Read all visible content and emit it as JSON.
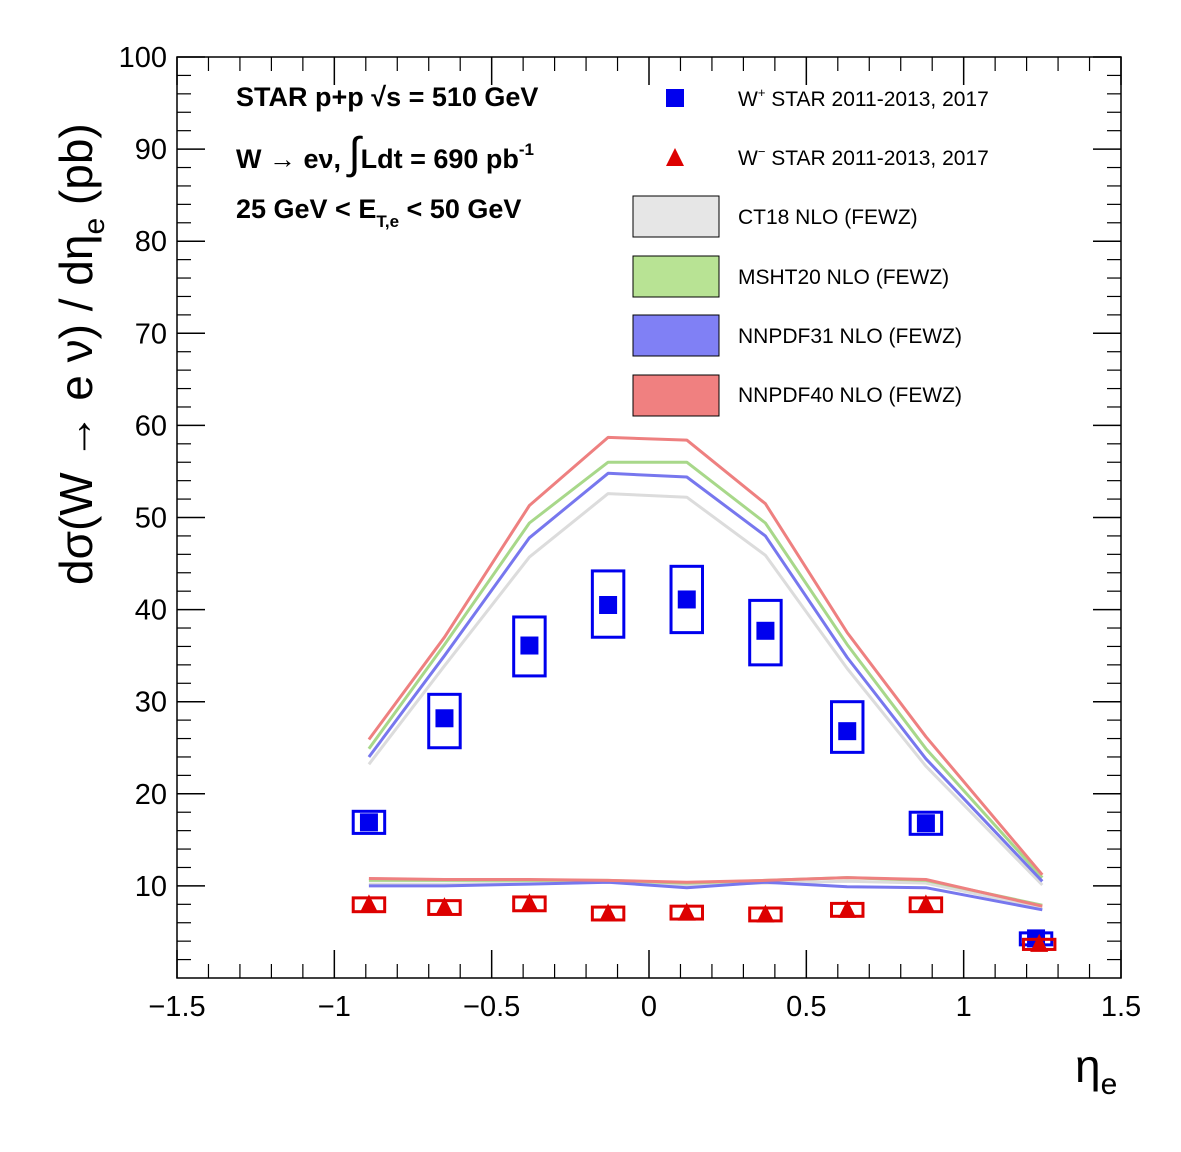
{
  "chart_data": {
    "type": "scatter",
    "xlabel": "η",
    "xlabel_sub": "e",
    "ylabel": "dσ(W → e ν) / dη",
    "ylabel_sub": "e",
    "ylabel_unit": " (pb)",
    "xlim": [
      -1.5,
      1.5
    ],
    "ylim": [
      0,
      100
    ],
    "x_ticks": [
      -1.5,
      -1,
      -0.5,
      0,
      0.5,
      1,
      1.5
    ],
    "x_tick_labels": [
      "−1.5",
      "−1",
      "−0.5",
      "0",
      "0.5",
      "1",
      "1.5"
    ],
    "y_ticks": [
      10,
      20,
      30,
      40,
      50,
      60,
      70,
      80,
      90,
      100
    ],
    "y_tick_labels": [
      "10",
      "20",
      "30",
      "40",
      "50",
      "60",
      "70",
      "80",
      "90",
      "100"
    ],
    "annotations": {
      "line1": "STAR p+p  √s = 510 GeV",
      "line2_a": "W  → eν, ",
      "line2_int": "∫",
      "line2_b": "Ldt = 690 pb",
      "line2_sup": "-1",
      "line3_a": "25 GeV < E",
      "line3_sub": "T,e",
      "line3_b": " < 50 GeV"
    },
    "legend_placement": "top-right",
    "series": [
      {
        "name": "W⁺ STAR 2011-2013, 2017",
        "legend_main": "W",
        "legend_sup": "+",
        "legend_rest": " STAR 2011-2013, 2017",
        "marker": "square",
        "color": "#0000ee",
        "x": [
          -0.89,
          -0.65,
          -0.38,
          -0.13,
          0.12,
          0.37,
          0.63,
          0.88,
          1.23
        ],
        "y": [
          16.9,
          28.2,
          36.1,
          40.5,
          41.1,
          37.7,
          26.8,
          16.8,
          4.3
        ],
        "sys_halfwidth": [
          0.05,
          0.05,
          0.05,
          0.05,
          0.05,
          0.05,
          0.05,
          0.05,
          0.05
        ],
        "sys_low": [
          15.7,
          25.0,
          32.8,
          37.0,
          37.5,
          34.0,
          24.5,
          15.6,
          3.6
        ],
        "sys_high": [
          18.1,
          30.8,
          39.2,
          44.2,
          44.7,
          41.0,
          30.0,
          18.0,
          4.9
        ]
      },
      {
        "name": "W⁻ STAR 2011-2013, 2017",
        "legend_main": "W",
        "legend_sup": "−",
        "legend_rest": " STAR 2011-2013, 2017",
        "marker": "triangle",
        "color": "#dd0000",
        "x": [
          -0.89,
          -0.65,
          -0.38,
          -0.13,
          0.12,
          0.37,
          0.63,
          0.88,
          1.24
        ],
        "y": [
          8.0,
          7.7,
          8.1,
          7.0,
          7.1,
          6.9,
          7.4,
          8.0,
          3.7
        ],
        "sys_halfwidth": [
          0.05,
          0.05,
          0.05,
          0.05,
          0.05,
          0.05,
          0.05,
          0.05,
          0.05
        ],
        "sys_low": [
          7.2,
          6.9,
          7.3,
          6.3,
          6.4,
          6.2,
          6.7,
          7.2,
          3.1
        ],
        "sys_high": [
          8.7,
          8.4,
          8.8,
          7.7,
          7.8,
          7.6,
          8.1,
          8.7,
          4.2
        ]
      }
    ],
    "theory_curves": [
      {
        "name": "CT18 NLO (FEWZ)",
        "color": "#dcdcdc",
        "legend_fill": "#e6e6e6",
        "x_plus": [
          -0.89,
          -0.65,
          -0.38,
          -0.13,
          0.12,
          0.37,
          0.63,
          0.88,
          1.25
        ],
        "y_plus": [
          23.2,
          33.9,
          45.7,
          52.6,
          52.2,
          45.9,
          33.6,
          23.0,
          10.1
        ],
        "x_minus": [
          -0.89,
          -0.65,
          -0.38,
          -0.13,
          0.12,
          0.37,
          0.63,
          0.88,
          1.25
        ],
        "y_minus": [
          10.2,
          10.2,
          10.3,
          10.4,
          10.1,
          10.3,
          10.5,
          10.3,
          7.6
        ]
      },
      {
        "name": "MSHT20 NLO (FEWZ)",
        "color": "#a8d88a",
        "legend_fill": "#b8e394",
        "x_plus": [
          -0.89,
          -0.65,
          -0.38,
          -0.13,
          0.12,
          0.37,
          0.63,
          0.88,
          1.25
        ],
        "y_plus": [
          24.9,
          36.2,
          49.4,
          56.0,
          56.0,
          49.4,
          36.2,
          24.9,
          10.9
        ],
        "x_minus": [
          -0.89,
          -0.65,
          -0.38,
          -0.13,
          0.12,
          0.37,
          0.63,
          0.88,
          1.25
        ],
        "y_minus": [
          10.6,
          10.6,
          10.6,
          10.6,
          10.3,
          10.6,
          10.9,
          10.6,
          7.9
        ]
      },
      {
        "name": "NNPDF31 NLO (FEWZ)",
        "color": "#7777ee",
        "legend_fill": "#8080f5",
        "x_plus": [
          -0.89,
          -0.65,
          -0.38,
          -0.13,
          0.12,
          0.37,
          0.63,
          0.88,
          1.25
        ],
        "y_plus": [
          24.0,
          35.0,
          47.8,
          54.8,
          54.4,
          48.0,
          34.8,
          23.8,
          10.5
        ],
        "x_minus": [
          -0.89,
          -0.65,
          -0.38,
          -0.13,
          0.12,
          0.37,
          0.63,
          0.88,
          1.25
        ],
        "y_minus": [
          10.0,
          10.0,
          10.2,
          10.4,
          9.8,
          10.4,
          9.9,
          9.8,
          7.4
        ]
      },
      {
        "name": "NNPDF40 NLO (FEWZ)",
        "color": "#ee8080",
        "legend_fill": "#f08080",
        "x_plus": [
          -0.89,
          -0.65,
          -0.38,
          -0.13,
          0.12,
          0.37,
          0.63,
          0.88,
          1.25
        ],
        "y_plus": [
          25.9,
          37.0,
          51.3,
          58.7,
          58.4,
          51.5,
          37.5,
          26.2,
          11.2
        ],
        "x_minus": [
          -0.89,
          -0.65,
          -0.38,
          -0.13,
          0.12,
          0.37,
          0.63,
          0.88,
          1.25
        ],
        "y_minus": [
          10.8,
          10.7,
          10.7,
          10.6,
          10.4,
          10.6,
          10.9,
          10.7,
          7.8
        ]
      }
    ]
  }
}
